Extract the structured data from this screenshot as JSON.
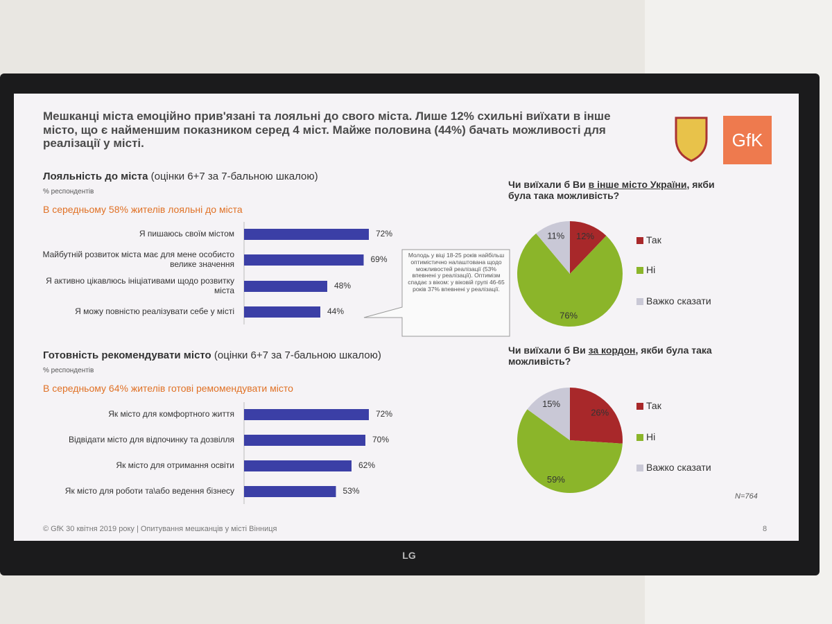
{
  "header": {
    "title": "Мешканці міста емоційно прив'язані та лояльні до свого міста. Лише 12% схильні виїхати в інше місто, що є найменшим показником серед 4 міст. Майже половина (44%) бачать можливості для реалізації у місті.",
    "logo": "GfK"
  },
  "chart_data": [
    {
      "type": "bar",
      "title": "Лояльність до міста",
      "title_note": "(оцінки 6+7 за 7-бальною шкалою)",
      "unit_label": "% респондентів",
      "subtitle": "В середньому 58% жителів лояльні до міста",
      "categories": [
        "Я пишаюсь своїм містом",
        "Майбутній розвиток міста має для мене особисто велике значення",
        "Я активно цікавлюсь ініціативами щодо розвитку міста",
        "Я можу повністю реалізувати себе у місті"
      ],
      "values": [
        72,
        69,
        48,
        44
      ],
      "value_labels": [
        "72%",
        "69%",
        "48%",
        "44%"
      ],
      "color": "#3b3fa6"
    },
    {
      "type": "bar",
      "title": "Готовність рекомендувати місто",
      "title_note": "(оцінки 6+7 за 7-бальною шкалою)",
      "unit_label": "% респондентів",
      "subtitle": "В середньому 64% жителів готові ремомендувати місто",
      "categories": [
        "Як місто для комфортного життя",
        "Відвідати місто для відпочинку та дозвілля",
        "Як місто для отримання освіти",
        "Як місто для роботи та\\або ведення бізнесу"
      ],
      "values": [
        72,
        70,
        62,
        53
      ],
      "value_labels": [
        "72%",
        "70%",
        "62%",
        "53%"
      ],
      "color": "#3b3fa6"
    },
    {
      "type": "pie",
      "title_start": "Чи виїхали б Ви ",
      "title_underlined": "в інше місто України",
      "title_end": ", якби була така можливість?",
      "categories": [
        "Так",
        "Ні",
        "Важко сказати"
      ],
      "values": [
        12,
        76,
        11
      ],
      "value_labels": [
        "12%",
        "76%",
        "11%"
      ],
      "colors": [
        "#a8282a",
        "#8bb52a",
        "#c9c8d6"
      ]
    },
    {
      "type": "pie",
      "title_start": "Чи виїхали б Ви ",
      "title_underlined": "за кордон",
      "title_end": ", якби була така можливість?",
      "categories": [
        "Так",
        "Ні",
        "Важко сказати"
      ],
      "values": [
        26,
        59,
        15
      ],
      "value_labels": [
        "26%",
        "59%",
        "15%"
      ],
      "colors": [
        "#a8282a",
        "#8bb52a",
        "#c9c8d6"
      ]
    }
  ],
  "callout": "Молодь у віці 18-25 років найбільш оптимістично налаштована щодо можливостей реалізації (53% впевнені у реалізації). Оптимізм спадає з віком: у віковій групі 46-65 років 37% впевнені у реалізації.",
  "sample_note": "N=764",
  "footer": {
    "source": "© GfK 30 квітня 2019 року | Опитування мешканців у місті Вінниця",
    "page": "8"
  },
  "brand": "LG"
}
